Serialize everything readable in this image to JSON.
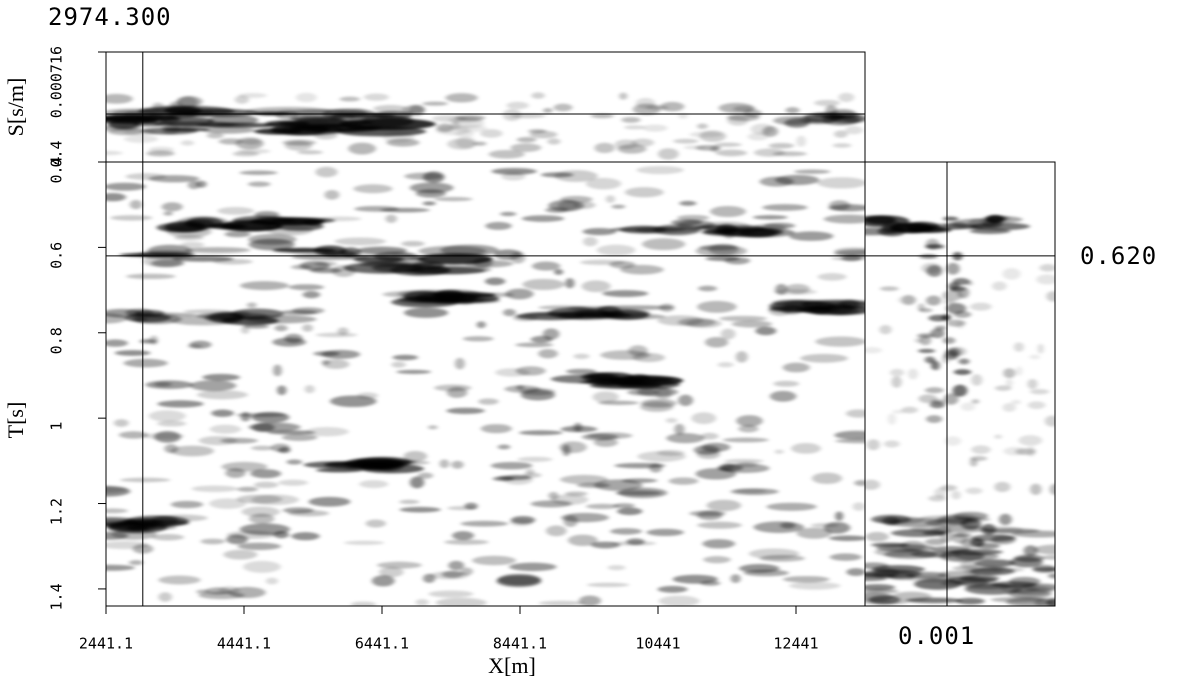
{
  "chart_data": {
    "type": "seismic-cube",
    "xlabel": "X[m]",
    "ylabel": "T[s]",
    "slabel": "S[s/m]",
    "xlim": [
      2441.1,
      13441
    ],
    "xticks": [
      2441.1,
      4441.1,
      6441.1,
      8441.1,
      10441,
      12441
    ],
    "ylim": [
      0.4,
      1.44
    ],
    "yticks": [
      0.4,
      0.6,
      0.8,
      1,
      1.2,
      1.4
    ],
    "slim": [
      0.000716,
      0.4
    ],
    "sticks": [
      0.000716,
      0.4
    ],
    "x_cursor": {
      "value": 2974.3,
      "label": "2974.300"
    },
    "t_cursor": {
      "value": 0.62,
      "label": "0.620"
    },
    "s_cursor": 0.001
  }
}
